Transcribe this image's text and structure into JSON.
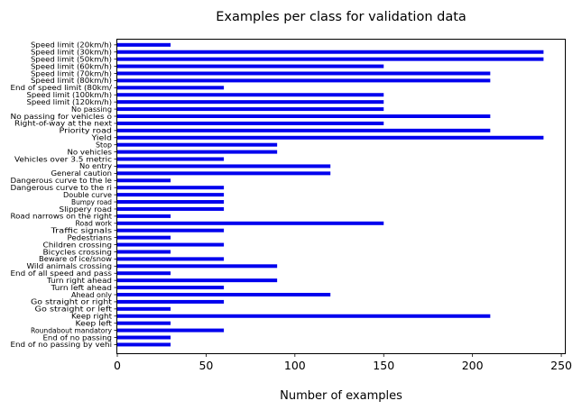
{
  "chart_data": {
    "type": "bar",
    "orientation": "horizontal",
    "title": "Examples per class for validation data",
    "xlabel": "Number of examples",
    "ylabel": "",
    "xlim": [
      0,
      252
    ],
    "xticks": [
      0,
      50,
      100,
      150,
      200,
      250
    ],
    "bar_color": "#0000ee",
    "grid": false,
    "categories": [
      "Speed limit (20km/h)",
      "Speed limit (30km/h)",
      "Speed limit (50km/h)",
      "Speed limit (60km/h)",
      "Speed limit (70km/h)",
      "Speed limit (80km/h)",
      "End of speed limit (80km/",
      "Speed limit (100km/h)",
      "Speed limit (120km/h)",
      "No passing",
      "No passing for vehicles o",
      "Right-of-way at the next",
      "Priority road",
      "Yield",
      "Stop",
      "No vehicles",
      "Vehicles over 3.5 metric",
      "No entry",
      "General caution",
      "Dangerous curve to the le",
      "Dangerous curve to the ri",
      "Double curve",
      "Bumpy road",
      "Slippery road",
      "Road narrows on the right",
      "Road work",
      "Traffic signals",
      "Pedestrians",
      "Children crossing",
      "Bicycles crossing",
      "Beware of ice/snow",
      "Wild animals crossing",
      "End of all speed and pass",
      "Turn right ahead",
      "Turn left ahead",
      "Ahead only",
      "Go straight or right",
      "Go straight or left",
      "Keep right",
      "Keep left",
      "Roundabout mandatory",
      "End of no passing",
      "End of no passing by vehi"
    ],
    "values": [
      30,
      240,
      240,
      150,
      210,
      210,
      60,
      150,
      150,
      150,
      210,
      150,
      210,
      240,
      90,
      90,
      60,
      120,
      120,
      30,
      60,
      60,
      60,
      60,
      30,
      150,
      60,
      30,
      60,
      30,
      60,
      90,
      30,
      90,
      60,
      120,
      60,
      30,
      210,
      30,
      60,
      30,
      30
    ]
  }
}
